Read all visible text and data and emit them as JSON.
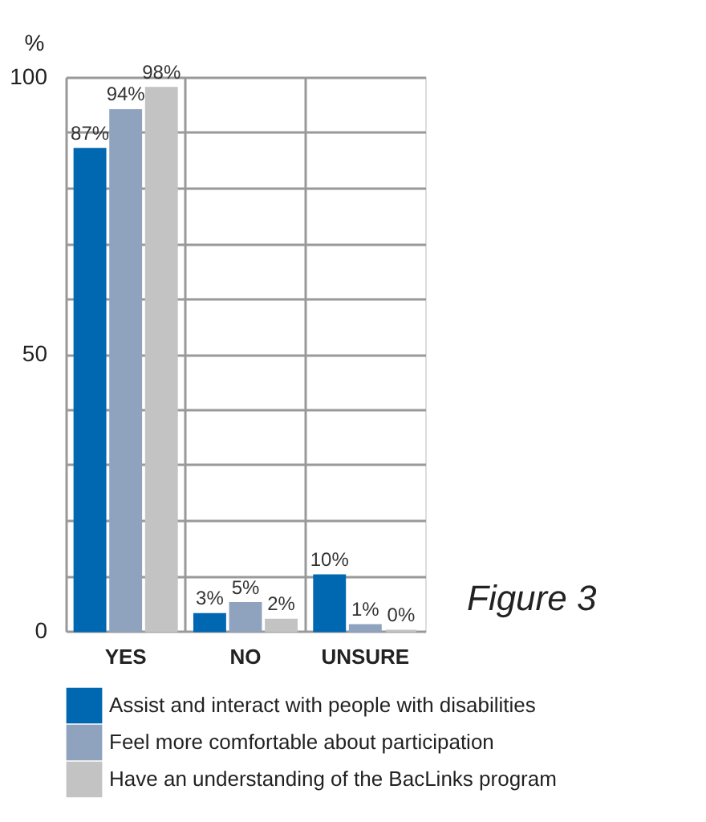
{
  "chart_data": {
    "type": "bar",
    "ylabel": "%",
    "categories": [
      "YES",
      "NO",
      "UNSURE"
    ],
    "series": [
      {
        "name": "Assist and interact with people with disabilities",
        "color": "#0067b1",
        "values": [
          87,
          3,
          10
        ],
        "value_labels": [
          "87%",
          "3%",
          "10%"
        ]
      },
      {
        "name": "Feel more comfortable about participation",
        "color": "#8fa3bf",
        "values": [
          94,
          5,
          1
        ],
        "value_labels": [
          "94%",
          "5%",
          "1%"
        ]
      },
      {
        "name": "Have an understanding of the BacLinks program",
        "color": "#c3c3c3",
        "values": [
          98,
          2,
          0
        ],
        "value_labels": [
          "98%",
          "2%",
          "0%"
        ]
      }
    ],
    "ylim": [
      0,
      100
    ],
    "yticks": [
      0,
      {
        "value": 10,
        "label": null
      },
      {
        "value": 20,
        "label": null
      },
      {
        "value": 30,
        "label": null
      },
      {
        "value": 40,
        "label": null
      },
      50,
      {
        "value": 60,
        "label": null
      },
      {
        "value": 70,
        "label": null
      },
      {
        "value": 80,
        "label": null
      },
      {
        "value": 90,
        "label": null
      },
      100
    ],
    "grid": true,
    "legend": "bottom",
    "annotations": [
      "Figure 3"
    ]
  }
}
